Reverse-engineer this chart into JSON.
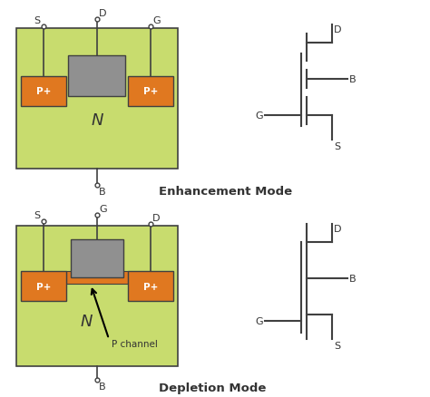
{
  "bg_color": "#ffffff",
  "n_substrate_color": "#d4e157",
  "n_substrate_color2": "#c8dc6e",
  "p_plus_color": "#e07820",
  "gate_color": "#909090",
  "line_color": "#404040",
  "text_color": "#333333",
  "enhancement_label": "Enhancement Mode",
  "depletion_label": "Depletion Mode",
  "n_label": "N",
  "p_channel_label": "P channel",
  "p_plus_label": "P+",
  "font_size_small": 8,
  "font_size_mode": 9.5,
  "fig_w": 4.74,
  "fig_h": 4.39,
  "dpi": 100
}
